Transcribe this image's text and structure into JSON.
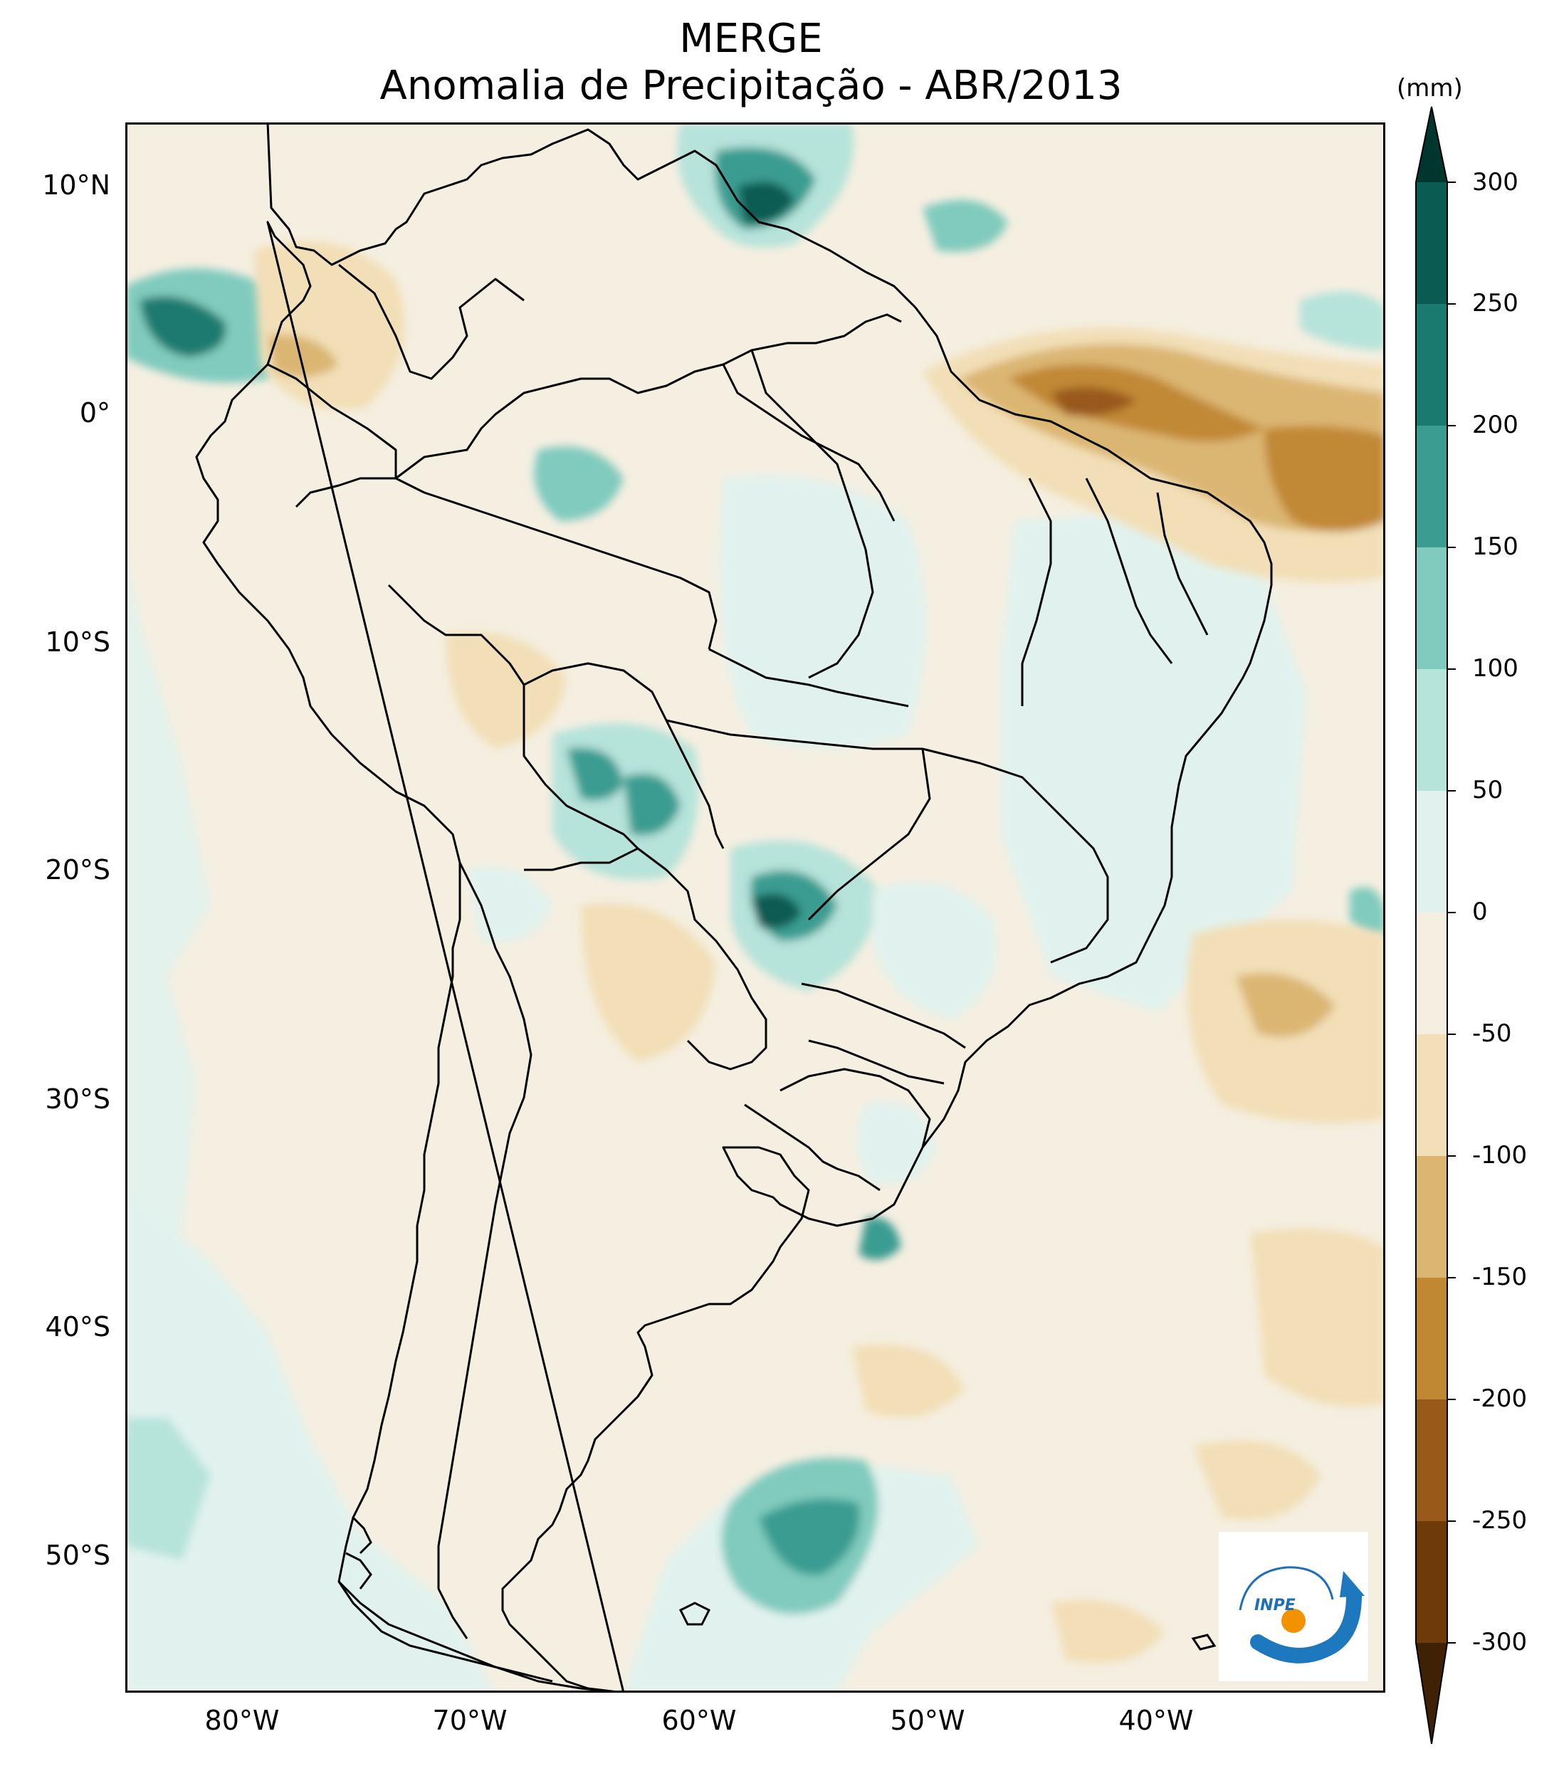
{
  "header": {
    "title": "MERGE",
    "subtitle": "Anomalia de Precipitação - ABR/2013"
  },
  "axes": {
    "lat_labels": [
      "10°N",
      "0°",
      "10°S",
      "20°S",
      "30°S",
      "40°S",
      "50°S"
    ],
    "lon_labels": [
      "80°W",
      "70°W",
      "60°W",
      "50°W",
      "40°W"
    ]
  },
  "colorbar": {
    "unit": "(mm)",
    "ticks": [
      "300",
      "250",
      "200",
      "150",
      "100",
      "50",
      "0",
      "-50",
      "-100",
      "-150",
      "-200",
      "-250",
      "-300"
    ],
    "colors": [
      "#01362e",
      "#0a5c52",
      "#1b7a70",
      "#3b9c91",
      "#80cbbe",
      "#b6e3da",
      "#e1f2ee",
      "#f5efe1",
      "#f2dfb7",
      "#dbb672",
      "#c18834",
      "#99591a",
      "#6e3a0a",
      "#3f2205"
    ]
  },
  "logo": {
    "text": "INPE"
  },
  "colors": {
    "neutral_pos": "#e1f2ee",
    "neutral_neg": "#f5efe1",
    "dry": "#dbb672",
    "very_dry": "#99591a",
    "wet": "#80cbbe",
    "very_wet": "#0a5c52"
  }
}
